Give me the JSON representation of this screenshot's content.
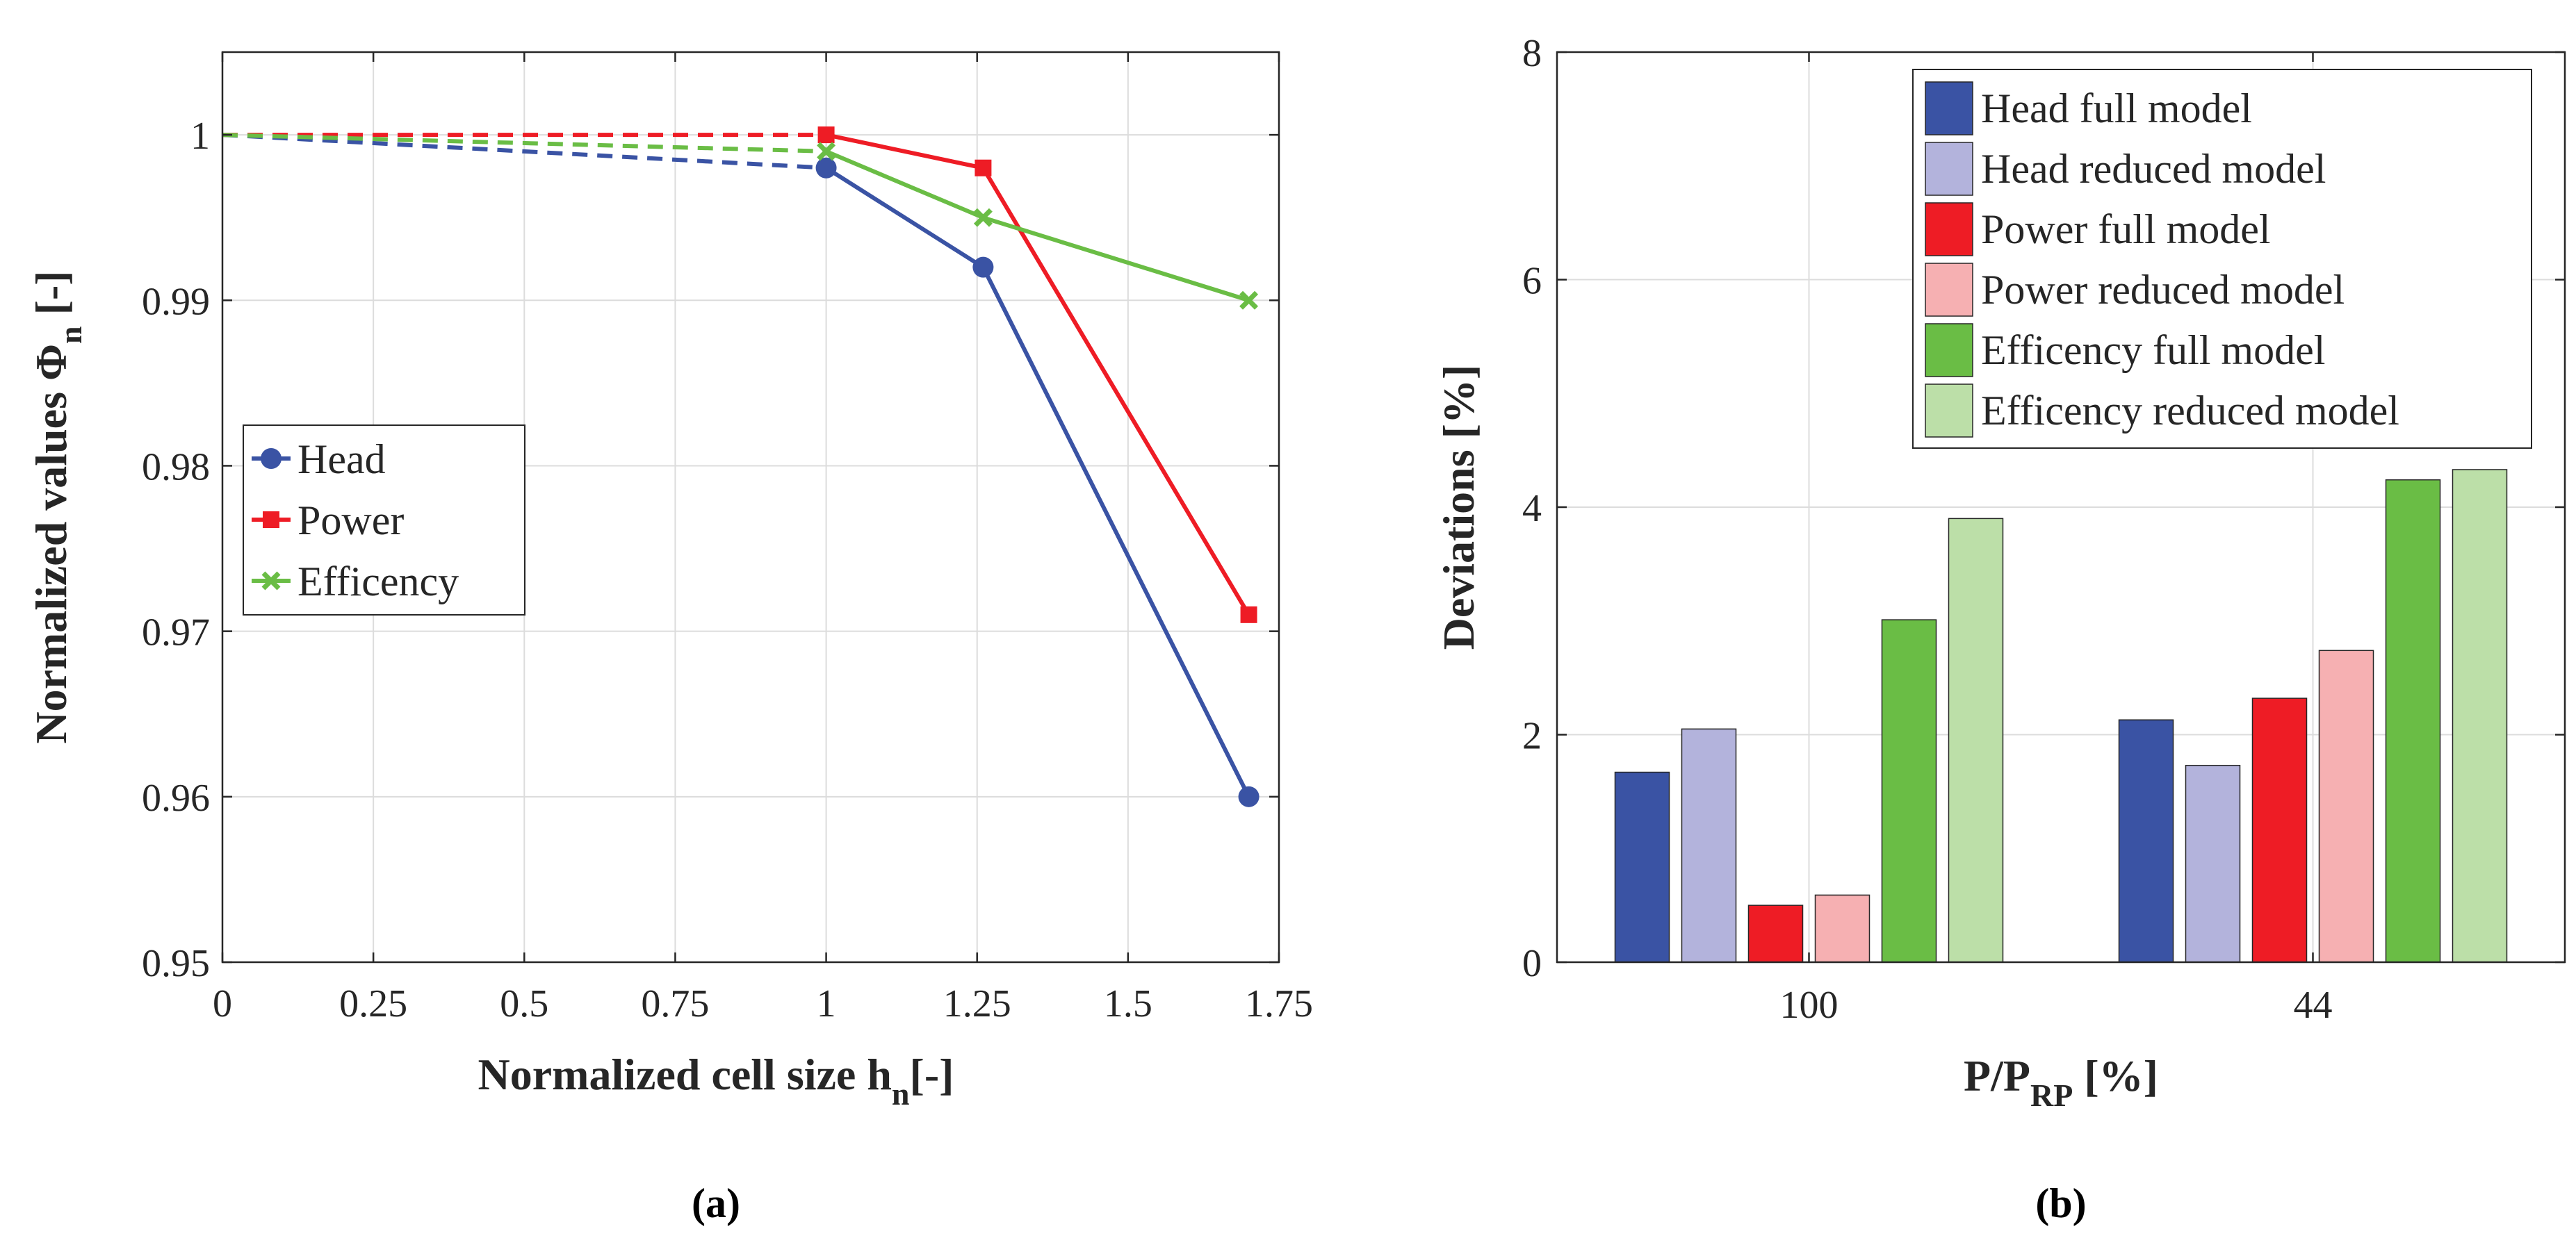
{
  "chart_data": [
    {
      "type": "line",
      "panel_label": "(a)",
      "xlabel": "Normalized cell size h",
      "xlabel_sub": "n",
      "xlabel_suffix": "[-]",
      "ylabel": "Normalized values Φ",
      "ylabel_sub": "n",
      "ylabel_suffix": " [-]",
      "xlim": [
        0,
        1.75
      ],
      "ylim": [
        0.95,
        1.005
      ],
      "xticks": [
        0,
        0.25,
        0.5,
        0.75,
        1,
        1.25,
        1.5,
        1.75
      ],
      "xtick_labels": [
        "0",
        "0.25",
        "0.5",
        "0.75",
        "1",
        "1.25",
        "1.5",
        "1.75"
      ],
      "yticks": [
        0.95,
        0.96,
        0.97,
        0.98,
        0.99,
        1.0
      ],
      "ytick_labels": [
        "0.95",
        "0.96",
        "0.97",
        "0.98",
        "0.99",
        "1"
      ],
      "grid": true,
      "legend_position": "center-left",
      "series": [
        {
          "name": "Head",
          "color": "#3a53a4",
          "marker": "circle",
          "extrapolated": [
            [
              0,
              1.0
            ],
            [
              1.0,
              0.998
            ]
          ],
          "x": [
            1.0,
            1.26,
            1.7
          ],
          "y": [
            0.998,
            0.992,
            0.96
          ]
        },
        {
          "name": "Power",
          "color": "#ee1c25",
          "marker": "square",
          "extrapolated": [
            [
              0,
              1.0
            ],
            [
              1.0,
              1.0
            ]
          ],
          "x": [
            1.0,
            1.26,
            1.7
          ],
          "y": [
            1.0,
            0.998,
            0.971
          ]
        },
        {
          "name": "Efficency",
          "color": "#6abd45",
          "marker": "x",
          "extrapolated": [
            [
              0,
              1.0
            ],
            [
              1.0,
              0.999
            ]
          ],
          "x": [
            1.0,
            1.26,
            1.7
          ],
          "y": [
            0.999,
            0.995,
            0.99
          ]
        }
      ]
    },
    {
      "type": "bar",
      "panel_label": "(b)",
      "xlabel": "P/P",
      "xlabel_sub": "RP",
      "xlabel_suffix": " [%]",
      "ylabel": "Deviations [%]",
      "categories": [
        "100",
        "44"
      ],
      "ylim": [
        0,
        8
      ],
      "yticks": [
        0,
        2,
        4,
        6,
        8
      ],
      "ytick_labels": [
        "0",
        "2",
        "4",
        "6",
        "8"
      ],
      "grid": true,
      "legend_position": "top-right",
      "series": [
        {
          "name": "Head full model",
          "color": "#3a53a4",
          "values": [
            1.67,
            2.13
          ]
        },
        {
          "name": "Head reduced model",
          "color": "#b3b3dc",
          "values": [
            2.05,
            1.73
          ]
        },
        {
          "name": "Power full model",
          "color": "#ee1c25",
          "values": [
            0.5,
            2.32
          ]
        },
        {
          "name": "Power reduced model",
          "color": "#f6b0b2",
          "values": [
            0.59,
            2.74
          ]
        },
        {
          "name": "Efficency full model",
          "color": "#6abd45",
          "values": [
            3.01,
            4.24
          ]
        },
        {
          "name": "Efficency reduced model",
          "color": "#bcdfa8",
          "values": [
            3.9,
            4.33
          ]
        }
      ]
    }
  ]
}
